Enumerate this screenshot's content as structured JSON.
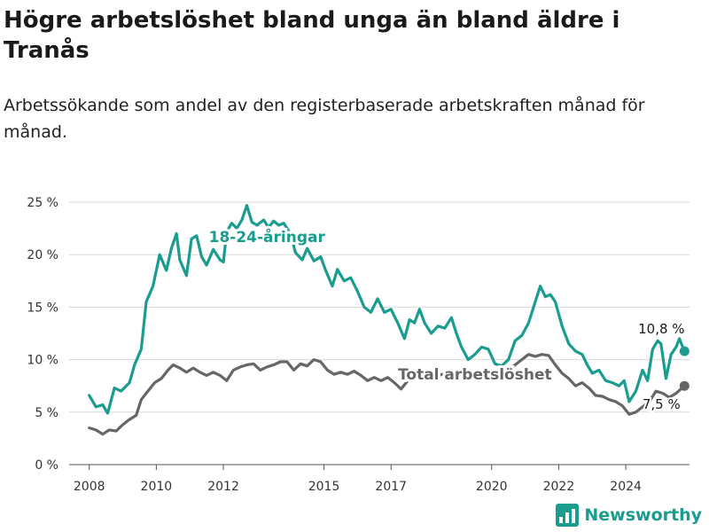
{
  "header": {
    "title": "Högre arbetslöshet bland unga än bland äldre i Tranås",
    "subtitle": "Arbetssökande som andel av den registerbaserade arbetskraften månad för månad."
  },
  "brand": {
    "name": "Newsworthy",
    "icon": "newsworthy-logo-icon",
    "color": "#1a9c8f"
  },
  "chart_data": {
    "type": "line",
    "ylim": [
      0,
      25
    ],
    "yticks": [
      0,
      5,
      10,
      15,
      20,
      25
    ],
    "ytick_labels": [
      "0 %",
      "5 %",
      "10 %",
      "15 %",
      "20 %",
      "25 %"
    ],
    "xlim": [
      2007.4,
      2025.9
    ],
    "xticks": [
      2008,
      2010,
      2012,
      2015,
      2017,
      2020,
      2022,
      2024
    ],
    "xtick_labels": [
      "2008",
      "2010",
      "2012",
      "2015",
      "2017",
      "2020",
      "2022",
      "2024"
    ],
    "grid": true,
    "series": [
      {
        "name": "18-24-åringar",
        "color": "#1a9c8f",
        "end_label": "10,8 %",
        "points": [
          [
            2008.0,
            6.6
          ],
          [
            2008.2,
            5.5
          ],
          [
            2008.4,
            5.7
          ],
          [
            2008.55,
            4.9
          ],
          [
            2008.75,
            7.3
          ],
          [
            2008.95,
            7.0
          ],
          [
            2009.2,
            7.8
          ],
          [
            2009.35,
            9.5
          ],
          [
            2009.55,
            11.0
          ],
          [
            2009.7,
            15.5
          ],
          [
            2009.9,
            17.0
          ],
          [
            2010.1,
            20.0
          ],
          [
            2010.3,
            18.5
          ],
          [
            2010.45,
            20.6
          ],
          [
            2010.6,
            22.0
          ],
          [
            2010.7,
            19.5
          ],
          [
            2010.9,
            18.0
          ],
          [
            2011.05,
            21.5
          ],
          [
            2011.2,
            21.8
          ],
          [
            2011.35,
            19.8
          ],
          [
            2011.5,
            19.0
          ],
          [
            2011.7,
            20.5
          ],
          [
            2011.9,
            19.5
          ],
          [
            2012.0,
            19.3
          ],
          [
            2012.1,
            22.2
          ],
          [
            2012.25,
            23.0
          ],
          [
            2012.4,
            22.5
          ],
          [
            2012.55,
            23.3
          ],
          [
            2012.7,
            24.7
          ],
          [
            2012.85,
            23.1
          ],
          [
            2013.0,
            22.8
          ],
          [
            2013.2,
            23.3
          ],
          [
            2013.35,
            22.6
          ],
          [
            2013.5,
            23.2
          ],
          [
            2013.65,
            22.8
          ],
          [
            2013.8,
            23.0
          ],
          [
            2014.0,
            22.0
          ],
          [
            2014.15,
            20.2
          ],
          [
            2014.35,
            19.5
          ],
          [
            2014.5,
            20.6
          ],
          [
            2014.7,
            19.4
          ],
          [
            2014.9,
            19.8
          ],
          [
            2015.05,
            18.5
          ],
          [
            2015.25,
            17.0
          ],
          [
            2015.4,
            18.6
          ],
          [
            2015.6,
            17.5
          ],
          [
            2015.8,
            17.8
          ],
          [
            2016.0,
            16.5
          ],
          [
            2016.2,
            15.0
          ],
          [
            2016.4,
            14.5
          ],
          [
            2016.6,
            15.8
          ],
          [
            2016.8,
            14.5
          ],
          [
            2017.0,
            14.8
          ],
          [
            2017.2,
            13.5
          ],
          [
            2017.4,
            12.0
          ],
          [
            2017.55,
            13.8
          ],
          [
            2017.7,
            13.5
          ],
          [
            2017.85,
            14.8
          ],
          [
            2018.0,
            13.5
          ],
          [
            2018.2,
            12.5
          ],
          [
            2018.4,
            13.2
          ],
          [
            2018.6,
            13.0
          ],
          [
            2018.8,
            14.0
          ],
          [
            2018.95,
            12.5
          ],
          [
            2019.1,
            11.2
          ],
          [
            2019.3,
            10.0
          ],
          [
            2019.5,
            10.5
          ],
          [
            2019.7,
            11.2
          ],
          [
            2019.9,
            11.0
          ],
          [
            2020.1,
            9.6
          ],
          [
            2020.3,
            9.4
          ],
          [
            2020.5,
            10.0
          ],
          [
            2020.7,
            11.8
          ],
          [
            2020.9,
            12.3
          ],
          [
            2021.1,
            13.5
          ],
          [
            2021.3,
            15.5
          ],
          [
            2021.45,
            17.0
          ],
          [
            2021.6,
            16.0
          ],
          [
            2021.75,
            16.2
          ],
          [
            2021.9,
            15.5
          ],
          [
            2022.1,
            13.2
          ],
          [
            2022.3,
            11.5
          ],
          [
            2022.5,
            10.8
          ],
          [
            2022.7,
            10.5
          ],
          [
            2022.85,
            9.5
          ],
          [
            2023.0,
            8.7
          ],
          [
            2023.2,
            9.0
          ],
          [
            2023.4,
            8.0
          ],
          [
            2023.6,
            7.8
          ],
          [
            2023.8,
            7.5
          ],
          [
            2023.95,
            8.0
          ],
          [
            2024.1,
            6.0
          ],
          [
            2024.3,
            7.0
          ],
          [
            2024.5,
            9.0
          ],
          [
            2024.65,
            8.0
          ],
          [
            2024.8,
            11.0
          ],
          [
            2024.95,
            11.8
          ],
          [
            2025.05,
            11.5
          ],
          [
            2025.2,
            8.2
          ],
          [
            2025.35,
            10.5
          ],
          [
            2025.5,
            11.2
          ],
          [
            2025.6,
            12.0
          ],
          [
            2025.75,
            10.8
          ]
        ]
      },
      {
        "name": "Total arbetslöshet",
        "color": "#666666",
        "end_label": "7,5 %",
        "points": [
          [
            2008.0,
            3.5
          ],
          [
            2008.2,
            3.3
          ],
          [
            2008.4,
            2.9
          ],
          [
            2008.6,
            3.3
          ],
          [
            2008.8,
            3.2
          ],
          [
            2009.0,
            3.8
          ],
          [
            2009.2,
            4.3
          ],
          [
            2009.4,
            4.7
          ],
          [
            2009.55,
            6.2
          ],
          [
            2009.75,
            7.0
          ],
          [
            2009.95,
            7.8
          ],
          [
            2010.15,
            8.2
          ],
          [
            2010.35,
            9.0
          ],
          [
            2010.5,
            9.5
          ],
          [
            2010.7,
            9.2
          ],
          [
            2010.9,
            8.8
          ],
          [
            2011.1,
            9.2
          ],
          [
            2011.3,
            8.8
          ],
          [
            2011.5,
            8.5
          ],
          [
            2011.7,
            8.8
          ],
          [
            2011.9,
            8.5
          ],
          [
            2012.1,
            8.0
          ],
          [
            2012.3,
            9.0
          ],
          [
            2012.5,
            9.3
          ],
          [
            2012.7,
            9.5
          ],
          [
            2012.9,
            9.6
          ],
          [
            2013.1,
            9.0
          ],
          [
            2013.3,
            9.3
          ],
          [
            2013.5,
            9.5
          ],
          [
            2013.7,
            9.8
          ],
          [
            2013.9,
            9.8
          ],
          [
            2014.1,
            9.0
          ],
          [
            2014.3,
            9.6
          ],
          [
            2014.5,
            9.4
          ],
          [
            2014.7,
            10.0
          ],
          [
            2014.9,
            9.8
          ],
          [
            2015.1,
            9.0
          ],
          [
            2015.3,
            8.6
          ],
          [
            2015.5,
            8.8
          ],
          [
            2015.7,
            8.6
          ],
          [
            2015.9,
            8.9
          ],
          [
            2016.1,
            8.5
          ],
          [
            2016.3,
            8.0
          ],
          [
            2016.5,
            8.3
          ],
          [
            2016.7,
            8.0
          ],
          [
            2016.9,
            8.3
          ],
          [
            2017.1,
            7.8
          ],
          [
            2017.3,
            7.2
          ],
          [
            2017.5,
            8.0
          ],
          [
            2017.7,
            8.2
          ],
          [
            2017.9,
            8.5
          ],
          [
            2018.1,
            8.0
          ],
          [
            2018.3,
            8.2
          ],
          [
            2018.5,
            8.6
          ],
          [
            2018.7,
            8.5
          ],
          [
            2018.9,
            8.5
          ],
          [
            2019.1,
            8.2
          ],
          [
            2019.3,
            8.0
          ],
          [
            2019.5,
            8.4
          ],
          [
            2019.7,
            8.5
          ],
          [
            2019.9,
            8.6
          ],
          [
            2020.1,
            8.5
          ],
          [
            2020.3,
            8.8
          ],
          [
            2020.5,
            9.0
          ],
          [
            2020.7,
            9.5
          ],
          [
            2020.9,
            10.0
          ],
          [
            2021.1,
            10.5
          ],
          [
            2021.3,
            10.3
          ],
          [
            2021.5,
            10.5
          ],
          [
            2021.7,
            10.4
          ],
          [
            2021.9,
            9.5
          ],
          [
            2022.1,
            8.7
          ],
          [
            2022.3,
            8.2
          ],
          [
            2022.5,
            7.5
          ],
          [
            2022.7,
            7.8
          ],
          [
            2022.9,
            7.3
          ],
          [
            2023.1,
            6.6
          ],
          [
            2023.3,
            6.5
          ],
          [
            2023.5,
            6.2
          ],
          [
            2023.7,
            6.0
          ],
          [
            2023.9,
            5.6
          ],
          [
            2024.1,
            4.8
          ],
          [
            2024.3,
            5.0
          ],
          [
            2024.5,
            5.5
          ],
          [
            2024.7,
            6.0
          ],
          [
            2024.9,
            7.0
          ],
          [
            2025.1,
            6.8
          ],
          [
            2025.3,
            6.4
          ],
          [
            2025.5,
            6.8
          ],
          [
            2025.75,
            7.5
          ]
        ]
      }
    ],
    "annotations": [
      {
        "text": "18-24-åringar",
        "series": 0,
        "x": 2013.3,
        "y": 21.2
      },
      {
        "text": "Total arbetslöshet",
        "series": 1,
        "x": 2019.5,
        "y": 8.1
      }
    ]
  }
}
